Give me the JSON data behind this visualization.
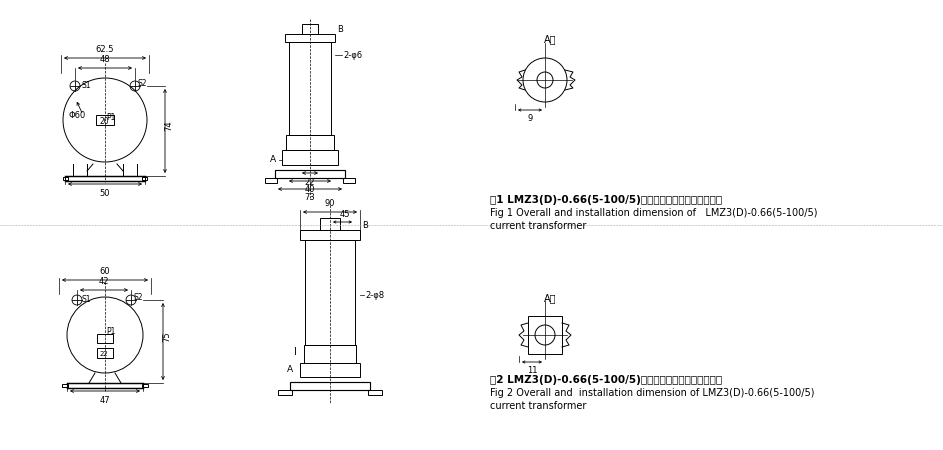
{
  "bg_color": "#ffffff",
  "line_color": "#000000",
  "fig1_text_cn": "图1 LMZ3(D)-0.66(5-100/5)型电流互感器外形及安装尺寸",
  "fig1_text_en1": "Fig 1 Overall and installation dimension of   LMZ3(D)-0.66(5-100/5)",
  "fig1_text_en2": "current transformer",
  "fig2_text_cn": "图2 LMZ3(D)-0.66(5-100/5)型电流互感器外形及安装尺寸",
  "fig2_text_en1": "Fig 2 Overall and  installation dimension of LMZ3(D)-0.66(5-100/5)",
  "fig2_text_en2": "current transformer"
}
